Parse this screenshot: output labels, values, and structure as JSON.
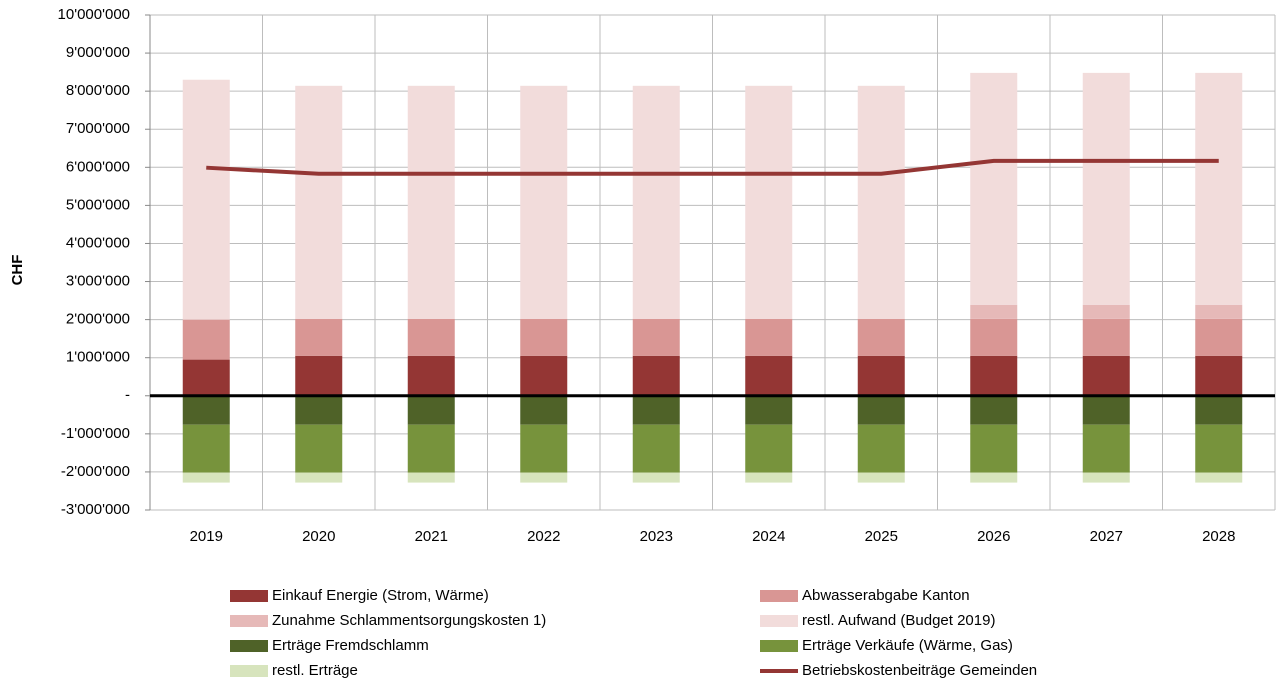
{
  "chart_data": {
    "type": "bar",
    "stacked": true,
    "y_label": "CHF",
    "categories": [
      "2019",
      "2020",
      "2021",
      "2022",
      "2023",
      "2024",
      "2025",
      "2026",
      "2027",
      "2028"
    ],
    "series": [
      {
        "name": "Einkauf Energie (Strom, Wärme)",
        "color": "#943634",
        "values": [
          950000,
          1050000,
          1050000,
          1050000,
          1050000,
          1050000,
          1050000,
          1050000,
          1050000,
          1050000
        ]
      },
      {
        "name": "Abwasserabgabe Kanton",
        "color": "#d99694",
        "values": [
          1050000,
          970000,
          970000,
          970000,
          970000,
          970000,
          970000,
          970000,
          970000,
          970000
        ]
      },
      {
        "name": "Zunahme Schlammentsorgungskosten 1)",
        "color": "#e6b9b8",
        "values": [
          0,
          0,
          0,
          0,
          0,
          0,
          0,
          370000,
          370000,
          370000
        ]
      },
      {
        "name": "restl. Aufwand (Budget 2019)",
        "color": "#f2dcdb",
        "values": [
          6300000,
          6120000,
          6120000,
          6120000,
          6120000,
          6120000,
          6120000,
          6090000,
          6090000,
          6090000
        ]
      },
      {
        "name": "Erträge Fremdschlamm",
        "color": "#4f6228",
        "values": [
          -760000,
          -760000,
          -760000,
          -760000,
          -760000,
          -760000,
          -760000,
          -760000,
          -760000,
          -760000
        ]
      },
      {
        "name": "Erträge Verkäufe (Wärme, Gas)",
        "color": "#77933c",
        "values": [
          -1260000,
          -1260000,
          -1260000,
          -1260000,
          -1260000,
          -1260000,
          -1260000,
          -1260000,
          -1260000,
          -1260000
        ]
      },
      {
        "name": "restl. Erträge",
        "color": "#d7e4bd",
        "values": [
          -260000,
          -260000,
          -260000,
          -260000,
          -260000,
          -260000,
          -260000,
          -260000,
          -260000,
          -260000
        ]
      },
      {
        "name": "Betriebskostenbeiträge Gemeinden",
        "color": "#943634",
        "type": "line",
        "values": [
          5990000,
          5830000,
          5830000,
          5830000,
          5830000,
          5830000,
          5830000,
          6170000,
          6170000,
          6170000
        ]
      }
    ],
    "ylim": [
      -3000000,
      10000000
    ],
    "yticks": [
      {
        "value": -3000000,
        "label": "-3'000'000"
      },
      {
        "value": -2000000,
        "label": "-2'000'000"
      },
      {
        "value": -1000000,
        "label": "-1'000'000"
      },
      {
        "value": 0,
        "label": "-"
      },
      {
        "value": 1000000,
        "label": "1'000'000"
      },
      {
        "value": 2000000,
        "label": "2'000'000"
      },
      {
        "value": 3000000,
        "label": "3'000'000"
      },
      {
        "value": 4000000,
        "label": "4'000'000"
      },
      {
        "value": 5000000,
        "label": "5'000'000"
      },
      {
        "value": 6000000,
        "label": "6'000'000"
      },
      {
        "value": 7000000,
        "label": "7'000'000"
      },
      {
        "value": 8000000,
        "label": "8'000'000"
      },
      {
        "value": 9000000,
        "label": "9'000'000"
      },
      {
        "value": 10000000,
        "label": "10'000'000"
      }
    ],
    "grid": true,
    "legend": "bottom"
  }
}
